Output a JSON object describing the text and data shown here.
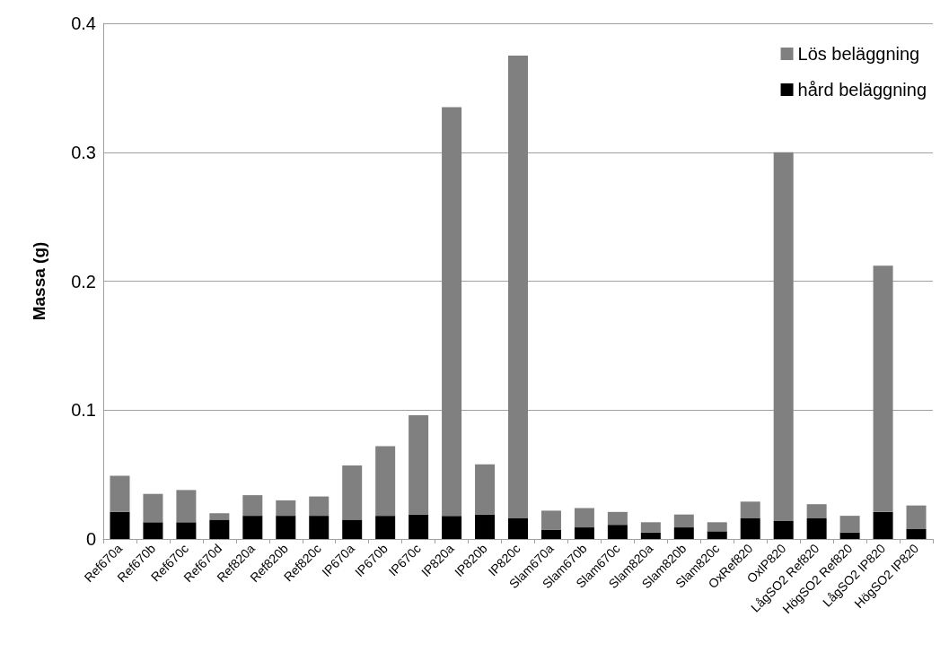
{
  "chart_data": {
    "type": "bar",
    "stacked": true,
    "ylabel": "Massa (g)",
    "categories": [
      "Ref670a",
      "Ref670b",
      "Ref670c",
      "Ref670d",
      "Ref820a",
      "Ref820b",
      "Ref820c",
      "IP670a",
      "IP670b",
      "IP670c",
      "IP820a",
      "IP820b",
      "IP820c",
      "Slam670a",
      "Slam670b",
      "Slam670c",
      "Slam820a",
      "Slam820b",
      "Slam820c",
      "OxRef820",
      "OxIP820",
      "LågSO2 Ref820",
      "HögSO2 Ref820",
      "LågSO2 IP820",
      "HögSO2 IP820"
    ],
    "series": [
      {
        "name": "hård beläggning",
        "color": "#000000",
        "values": [
          0.021,
          0.013,
          0.013,
          0.015,
          0.018,
          0.018,
          0.018,
          0.015,
          0.018,
          0.019,
          0.018,
          0.019,
          0.016,
          0.007,
          0.009,
          0.011,
          0.005,
          0.009,
          0.006,
          0.016,
          0.014,
          0.016,
          0.005,
          0.021,
          0.008
        ]
      },
      {
        "name": "Lös beläggning",
        "color": "#808080",
        "values": [
          0.028,
          0.022,
          0.025,
          0.005,
          0.016,
          0.012,
          0.015,
          0.042,
          0.054,
          0.077,
          0.317,
          0.039,
          0.359,
          0.015,
          0.015,
          0.01,
          0.008,
          0.01,
          0.007,
          0.013,
          0.286,
          0.011,
          0.013,
          0.191,
          0.018
        ]
      }
    ],
    "ylim": [
      0,
      0.4
    ],
    "yticks": [
      0,
      0.1,
      0.2,
      0.3,
      0.4
    ],
    "grid": "y",
    "legend": "top right"
  }
}
